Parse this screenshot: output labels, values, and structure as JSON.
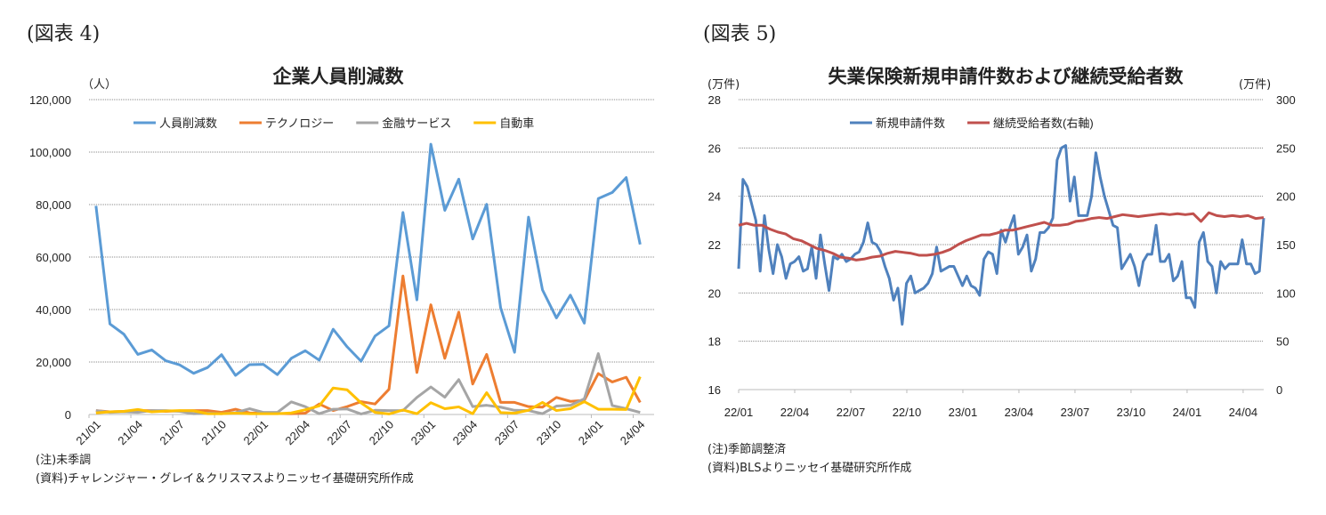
{
  "left": {
    "figure_label": "(図表 4)",
    "notes": [
      "(注)未季調",
      "(資料)チャレンジャー・グレイ＆クリスマスよりニッセイ基礎研究所作成"
    ]
  },
  "right": {
    "figure_label": "(図表 5)",
    "notes": [
      "(注)季節調整済",
      "(資料)BLSよりニッセイ基礎研究所作成"
    ]
  },
  "chart_data": [
    {
      "type": "line",
      "title": "企業人員削減数",
      "ylabel": "（人）",
      "ylim": [
        0,
        120000
      ],
      "yticks": [
        "0",
        "20,000",
        "40,000",
        "60,000",
        "80,000",
        "100,000",
        "120,000"
      ],
      "xtick_labels": [
        "21/01",
        "21/04",
        "21/07",
        "21/10",
        "22/01",
        "22/04",
        "22/07",
        "22/10",
        "23/01",
        "23/04",
        "23/07",
        "23/10",
        "24/01",
        "24/04"
      ],
      "grid": true,
      "legend": "top",
      "categories": [
        "21/01",
        "21/02",
        "21/03",
        "21/04",
        "21/05",
        "21/06",
        "21/07",
        "21/08",
        "21/09",
        "21/10",
        "21/11",
        "21/12",
        "22/01",
        "22/02",
        "22/03",
        "22/04",
        "22/05",
        "22/06",
        "22/07",
        "22/08",
        "22/09",
        "22/10",
        "22/11",
        "22/12",
        "23/01",
        "23/02",
        "23/03",
        "23/04",
        "23/05",
        "23/06",
        "23/07",
        "23/08",
        "23/09",
        "23/10",
        "23/11",
        "23/12",
        "24/01",
        "24/02",
        "24/03",
        "24/04"
      ],
      "series": [
        {
          "name": "人員削減数",
          "color": "#5b9bd5",
          "values": [
            79500,
            34500,
            30600,
            22900,
            24600,
            20500,
            18900,
            15700,
            17900,
            22800,
            14900,
            19000,
            19100,
            15200,
            21400,
            24300,
            20700,
            32500,
            25800,
            20300,
            29900,
            33800,
            77000,
            43700,
            103000,
            77800,
            89700,
            66900,
            80100,
            40700,
            23700,
            75200,
            47500,
            36800,
            45500,
            34800,
            82300,
            84600,
            90300,
            64800
          ]
        },
        {
          "name": "テクノロジー",
          "color": "#ed7d31",
          "values": [
            1500,
            1000,
            1200,
            1500,
            1500,
            1200,
            1400,
            1500,
            1500,
            800,
            2000,
            600,
            500,
            400,
            300,
            500,
            4000,
            1500,
            3000,
            4900,
            4000,
            9600,
            52800,
            16000,
            41800,
            21400,
            39000,
            11600,
            22900,
            4600,
            4600,
            3000,
            2800,
            6500,
            5000,
            5400,
            15600,
            12400,
            14200,
            4600
          ]
        },
        {
          "name": "金融サービス",
          "color": "#a5a5a5",
          "values": [
            1500,
            800,
            1000,
            800,
            1500,
            1500,
            1200,
            300,
            500,
            300,
            700,
            2200,
            800,
            800,
            4800,
            3000,
            300,
            2000,
            2100,
            200,
            1600,
            1500,
            1500,
            6500,
            10500,
            6600,
            13300,
            3000,
            3500,
            2800,
            1600,
            1500,
            300,
            3200,
            3500,
            6000,
            23200,
            3400,
            2200,
            800
          ]
        },
        {
          "name": "自動車",
          "color": "#ffc000",
          "values": [
            600,
            1000,
            1200,
            1900,
            1000,
            1300,
            1500,
            1400,
            300,
            300,
            500,
            300,
            300,
            300,
            600,
            1800,
            3300,
            10100,
            9400,
            4400,
            800,
            200,
            1700,
            300,
            4500,
            2200,
            2900,
            300,
            8300,
            700,
            500,
            1600,
            4600,
            1500,
            2200,
            4900,
            2000,
            2000,
            1900,
            14400
          ]
        }
      ]
    },
    {
      "type": "line",
      "title": "失業保険新規申請件数および継続受給者数",
      "ylabel": "(万件)",
      "y2label": "(万件)",
      "ylim": [
        16,
        28
      ],
      "y2lim": [
        0,
        300
      ],
      "yticks": [
        "16",
        "18",
        "20",
        "22",
        "24",
        "26",
        "28"
      ],
      "y2ticks": [
        "0",
        "50",
        "100",
        "150",
        "200",
        "250",
        "300"
      ],
      "xtick_labels": [
        "22/01",
        "22/04",
        "22/07",
        "22/10",
        "23/01",
        "23/04",
        "23/07",
        "23/10",
        "24/01",
        "24/04"
      ],
      "x_range": [
        "22/01",
        "24/05"
      ],
      "grid": true,
      "legend": "top",
      "series": [
        {
          "name": "新規申請件数",
          "color": "#4f81bd",
          "axis": "left",
          "values": [
            21.0,
            24.7,
            24.4,
            23.7,
            23.0,
            20.9,
            23.2,
            21.8,
            20.8,
            22.0,
            21.5,
            20.6,
            21.2,
            21.3,
            21.5,
            20.9,
            21.0,
            21.9,
            20.6,
            22.4,
            21.2,
            20.1,
            21.5,
            21.4,
            21.6,
            21.3,
            21.4,
            21.6,
            21.7,
            22.1,
            22.9,
            22.1,
            22.0,
            21.7,
            21.1,
            20.6,
            19.7,
            20.2,
            18.7,
            20.4,
            20.7,
            20.0,
            20.1,
            20.2,
            20.4,
            20.8,
            21.9,
            20.9,
            21.0,
            21.1,
            21.1,
            20.7,
            20.3,
            20.7,
            20.3,
            20.2,
            19.9,
            21.4,
            21.7,
            21.6,
            20.8,
            22.6,
            22.1,
            22.7,
            23.2,
            21.6,
            21.9,
            22.4,
            20.9,
            21.4,
            22.5,
            22.5,
            22.7,
            23.1,
            25.5,
            26.0,
            26.1,
            23.8,
            24.8,
            23.2,
            23.2,
            23.2,
            24.0,
            25.8,
            24.8,
            24.0,
            23.4,
            22.8,
            22.7,
            21.0,
            21.3,
            21.6,
            21.1,
            20.3,
            21.3,
            21.6,
            21.6,
            22.8,
            21.3,
            21.3,
            21.6,
            20.5,
            20.7,
            21.3,
            19.8,
            19.8,
            19.4,
            22.1,
            22.5,
            21.3,
            21.1,
            20.0,
            21.3,
            21.0,
            21.2,
            21.2,
            21.2,
            22.2,
            21.2,
            21.2,
            20.8,
            20.9,
            23.1
          ]
        },
        {
          "name": "継続受給者数(右軸)",
          "color": "#c0504d",
          "axis": "right",
          "values": [
            170,
            172,
            170,
            170,
            166,
            163,
            161,
            156,
            154,
            150,
            146,
            144,
            141,
            137,
            136,
            134,
            135,
            137,
            138,
            141,
            143,
            142,
            141,
            139,
            139,
            140,
            142,
            145,
            150,
            154,
            157,
            160,
            160,
            162,
            165,
            165,
            167,
            169,
            171,
            173,
            170,
            170,
            171,
            174,
            175,
            177,
            178,
            177,
            179,
            181,
            180,
            179,
            180,
            181,
            182,
            181,
            182,
            181,
            182,
            174,
            183,
            180,
            179,
            180,
            179,
            180,
            177,
            178
          ]
        }
      ]
    }
  ]
}
